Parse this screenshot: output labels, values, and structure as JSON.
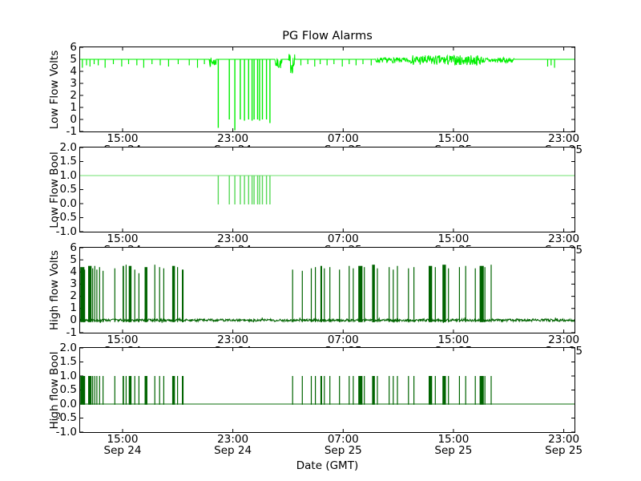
{
  "figure": {
    "title": "PG Flow Alarms",
    "background_color": "#ffffff",
    "frame_color": "#000000",
    "text_color": "#000000"
  },
  "chart_data": {
    "type": "line",
    "title": "PG Flow Alarms",
    "xlabel": "Date (GMT)",
    "x_axis": {
      "unit": "hours_since_Sep24_00:00_GMT",
      "range": [
        11.92,
        47.78
      ],
      "ticks": [
        {
          "t": 15,
          "time": "15:00",
          "date": "Sep 24"
        },
        {
          "t": 23,
          "time": "23:00",
          "date": "Sep 24"
        },
        {
          "t": 31,
          "time": "07:00",
          "date": "Sep 25"
        },
        {
          "t": 39,
          "time": "15:00",
          "date": "Sep 25"
        },
        {
          "t": 47,
          "time": "23:00",
          "date": "Sep 25"
        }
      ]
    },
    "subplots": [
      {
        "ylabel": "Low Flow Volts",
        "ylim": [
          -1,
          6
        ],
        "yticks": [
          6,
          5,
          4,
          3,
          2,
          1,
          0,
          -1
        ],
        "ytick_labels": [
          "6",
          "5",
          "4",
          "3",
          "2",
          "1",
          "0",
          "-1"
        ],
        "color": "#00ef00",
        "baseline_value": 5,
        "fuzz": {
          "t0": 33.3,
          "t1": 43.4,
          "center": 4.92,
          "amp": 0.45,
          "heavy_t0": 36.0,
          "heavy_t1": 41.0,
          "heavy_amp": 0.85
        },
        "blobs": [
          {
            "t": 21.55,
            "lo": 4.4,
            "hi": 5.15
          },
          {
            "t": 26.3,
            "lo": 4.2,
            "hi": 5.1
          },
          {
            "t": 27.25,
            "lo": 3.8,
            "hi": 5.5
          }
        ]
      },
      {
        "ylabel": "Low Flow Bool",
        "ylim": [
          -1,
          2
        ],
        "yticks": [
          2.0,
          1.5,
          1.0,
          0.5,
          0.0,
          -0.5,
          -1.0
        ],
        "ytick_labels": [
          "2.0",
          "1.5",
          "1.0",
          "0.5",
          "0.0",
          "-0.5",
          "-1.0"
        ],
        "color": "#8ce88c",
        "dip_color": "#58d858",
        "baseline_value": 1,
        "dip_value": 0
      },
      {
        "ylabel": "High flow Volts",
        "ylim": [
          -1,
          6
        ],
        "yticks": [
          6,
          5,
          4,
          3,
          2,
          1,
          0,
          -1
        ],
        "ytick_labels": [
          "6",
          "5",
          "4",
          "3",
          "2",
          "1",
          "0",
          "-1"
        ],
        "color": "#006400",
        "baseline_value": 0,
        "baseline_noise_amp": 0.2
      },
      {
        "ylabel": "High flow Bool",
        "ylim": [
          -1,
          2
        ],
        "yticks": [
          2.0,
          1.5,
          1.0,
          0.5,
          0.0,
          -0.5,
          -1.0
        ],
        "ytick_labels": [
          "2.0",
          "1.5",
          "1.0",
          "0.5",
          "0.0",
          "-0.5",
          "-1.0"
        ],
        "color": "#006400",
        "baseline_color": "#3c8c3c",
        "baseline_value": 0,
        "spike_value": 1
      }
    ],
    "events": {
      "low_flow_alarm_dips_format": "[hours_since_Sep24_00, min_volts]",
      "low_flow_alarm_dips": [
        [
          21.9,
          -0.7
        ],
        [
          22.7,
          0.0
        ],
        [
          23.1,
          -0.9
        ],
        [
          23.5,
          0.0
        ],
        [
          23.8,
          -0.1
        ],
        [
          24.1,
          0.0
        ],
        [
          24.35,
          -0.1
        ],
        [
          24.5,
          0.0
        ],
        [
          24.75,
          0.0
        ],
        [
          24.9,
          -0.1
        ],
        [
          25.1,
          0.0
        ],
        [
          25.4,
          0.0
        ],
        [
          25.65,
          -0.3
        ]
      ],
      "low_flow_noise_dips_format": "[hours_since_Sep24_00, min_volts]",
      "low_flow_noise_dips": [
        [
          12.05,
          4.3
        ],
        [
          12.35,
          4.5
        ],
        [
          12.6,
          4.4
        ],
        [
          12.9,
          4.6
        ],
        [
          13.2,
          4.5
        ],
        [
          13.7,
          4.3
        ],
        [
          14.3,
          4.6
        ],
        [
          14.9,
          4.4
        ],
        [
          15.4,
          4.6
        ],
        [
          16.0,
          4.5
        ],
        [
          16.5,
          4.3
        ],
        [
          17.1,
          4.6
        ],
        [
          17.7,
          4.5
        ],
        [
          18.3,
          4.4
        ],
        [
          19.0,
          4.6
        ],
        [
          19.8,
          4.5
        ],
        [
          20.4,
          4.3
        ],
        [
          20.9,
          4.6
        ],
        [
          21.3,
          4.5
        ],
        [
          27.9,
          4.5
        ],
        [
          28.4,
          4.6
        ],
        [
          28.9,
          4.4
        ],
        [
          29.3,
          4.6
        ],
        [
          29.8,
          4.5
        ],
        [
          30.3,
          4.6
        ],
        [
          30.9,
          4.4
        ],
        [
          31.4,
          4.6
        ],
        [
          31.9,
          4.5
        ],
        [
          32.4,
          4.6
        ],
        [
          33.0,
          4.5
        ],
        [
          45.8,
          4.4
        ],
        [
          46.05,
          4.5
        ],
        [
          46.3,
          4.3
        ]
      ],
      "high_flow_spikes_format": "[hours_since_Sep24_00, width_hours, peak_volts]",
      "high_flow_spikes": [
        [
          11.93,
          0.3,
          4.4
        ],
        [
          12.18,
          0.1,
          4.2
        ],
        [
          12.5,
          0.25,
          4.5
        ],
        [
          12.8,
          0.06,
          4.3
        ],
        [
          12.95,
          0.06,
          4.5
        ],
        [
          13.1,
          0.06,
          4.2
        ],
        [
          13.3,
          0.06,
          4.4
        ],
        [
          13.55,
          0.06,
          4.1
        ],
        [
          14.4,
          0.06,
          4.3
        ],
        [
          15.0,
          0.1,
          4.5
        ],
        [
          15.22,
          0.06,
          4.6
        ],
        [
          15.45,
          0.2,
          4.5
        ],
        [
          15.85,
          0.06,
          4.2
        ],
        [
          16.15,
          0.06,
          3.9
        ],
        [
          16.6,
          0.2,
          4.4
        ],
        [
          17.3,
          0.06,
          4.6
        ],
        [
          17.65,
          0.06,
          4.4
        ],
        [
          17.95,
          0.06,
          4.3
        ],
        [
          18.6,
          0.2,
          4.5
        ],
        [
          18.95,
          0.06,
          4.4
        ],
        [
          19.3,
          0.12,
          4.2
        ],
        [
          27.3,
          0.06,
          4.2
        ],
        [
          28.0,
          0.06,
          4.1
        ],
        [
          28.65,
          0.06,
          4.3
        ],
        [
          28.95,
          0.06,
          4.4
        ],
        [
          29.35,
          0.12,
          4.5
        ],
        [
          29.6,
          0.06,
          4.3
        ],
        [
          30.0,
          0.06,
          4.4
        ],
        [
          30.7,
          0.06,
          4.2
        ],
        [
          31.4,
          0.06,
          4.5
        ],
        [
          31.7,
          0.06,
          4.3
        ],
        [
          32.1,
          0.3,
          4.5
        ],
        [
          32.5,
          0.06,
          4.4
        ],
        [
          33.1,
          0.2,
          4.6
        ],
        [
          33.45,
          0.06,
          4.3
        ],
        [
          34.3,
          0.06,
          4.4
        ],
        [
          34.6,
          0.06,
          4.2
        ],
        [
          34.9,
          0.06,
          4.5
        ],
        [
          35.7,
          0.06,
          4.3
        ],
        [
          36.1,
          0.06,
          4.4
        ],
        [
          37.2,
          0.25,
          4.5
        ],
        [
          37.65,
          0.06,
          4.4
        ],
        [
          38.2,
          0.25,
          4.6
        ],
        [
          38.6,
          0.06,
          4.3
        ],
        [
          39.4,
          0.06,
          4.4
        ],
        [
          39.85,
          0.06,
          4.5
        ],
        [
          40.55,
          0.06,
          4.3
        ],
        [
          40.9,
          0.3,
          4.5
        ],
        [
          41.25,
          0.06,
          4.4
        ],
        [
          41.7,
          0.06,
          4.6
        ]
      ]
    }
  }
}
